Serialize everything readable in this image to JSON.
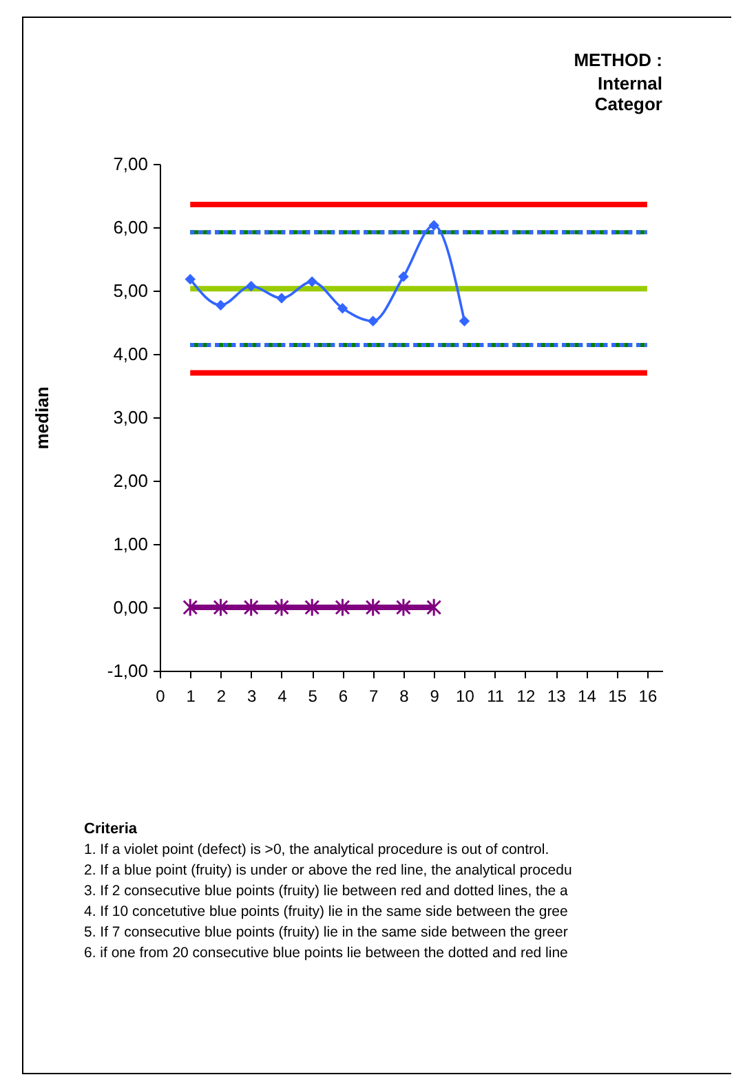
{
  "chart_data": {
    "type": "line",
    "title": "METHOD :",
    "subtitle": "Internal\nCategor",
    "ylabel": "median",
    "xlim": [
      0,
      16.5
    ],
    "xticks": [
      0,
      1,
      2,
      3,
      4,
      5,
      6,
      7,
      8,
      9,
      10,
      11,
      12,
      13,
      14,
      15,
      16
    ],
    "ylim": [
      -1,
      7
    ],
    "yticks": [
      {
        "value": -1,
        "label": "-1,00"
      },
      {
        "value": 0,
        "label": "0,00"
      },
      {
        "value": 1,
        "label": "1,00"
      },
      {
        "value": 2,
        "label": "2,00"
      },
      {
        "value": 3,
        "label": "3,00"
      },
      {
        "value": 4,
        "label": "4,00"
      },
      {
        "value": 5,
        "label": "5,00"
      },
      {
        "value": 6,
        "label": "6,00"
      },
      {
        "value": 7,
        "label": "7,00"
      }
    ],
    "grid": false,
    "series": [
      {
        "color": "#ff0000",
        "marker": "none",
        "line_style": "solid",
        "x": [
          1,
          2,
          3,
          4,
          5,
          6,
          7,
          8,
          9,
          10,
          11,
          12,
          13,
          14,
          15,
          16
        ],
        "values": [
          6.36,
          6.36,
          6.36,
          6.36,
          6.36,
          6.36,
          6.36,
          6.36,
          6.36,
          6.36,
          6.36,
          6.36,
          6.36,
          6.36,
          6.36,
          6.36
        ]
      },
      {
        "color": "#ff0000",
        "marker": "none",
        "line_style": "solid",
        "x": [
          1,
          2,
          3,
          4,
          5,
          6,
          7,
          8,
          9,
          10,
          11,
          12,
          13,
          14,
          15,
          16
        ],
        "values": [
          3.7,
          3.7,
          3.7,
          3.7,
          3.7,
          3.7,
          3.7,
          3.7,
          3.7,
          3.7,
          3.7,
          3.7,
          3.7,
          3.7,
          3.7,
          3.7
        ]
      },
      {
        "color": "#008000",
        "marker": "none",
        "line_style": "dashed",
        "x": [
          1,
          2,
          3,
          4,
          5,
          6,
          7,
          8,
          9,
          10,
          11,
          12,
          13,
          14,
          15,
          16
        ],
        "values": [
          5.92,
          5.92,
          5.92,
          5.92,
          5.92,
          5.92,
          5.92,
          5.92,
          5.92,
          5.92,
          5.92,
          5.92,
          5.92,
          5.92,
          5.92,
          5.92
        ]
      },
      {
        "color": "#008000",
        "marker": "none",
        "line_style": "dashed",
        "x": [
          1,
          2,
          3,
          4,
          5,
          6,
          7,
          8,
          9,
          10,
          11,
          12,
          13,
          14,
          15,
          16
        ],
        "values": [
          4.14,
          4.14,
          4.14,
          4.14,
          4.14,
          4.14,
          4.14,
          4.14,
          4.14,
          4.14,
          4.14,
          4.14,
          4.14,
          4.14,
          4.14,
          4.14
        ]
      },
      {
        "color": "#3366ff",
        "marker": "none",
        "line_style": "dotted",
        "x": [
          1,
          2,
          3,
          4,
          5,
          6,
          7,
          8,
          9,
          10,
          11,
          12,
          13,
          14,
          15,
          16
        ],
        "values": [
          5.92,
          5.92,
          5.92,
          5.92,
          5.92,
          5.92,
          5.92,
          5.92,
          5.92,
          5.92,
          5.92,
          5.92,
          5.92,
          5.92,
          5.92,
          5.92
        ]
      },
      {
        "color": "#3366ff",
        "marker": "none",
        "line_style": "dotted",
        "x": [
          1,
          2,
          3,
          4,
          5,
          6,
          7,
          8,
          9,
          10,
          11,
          12,
          13,
          14,
          15,
          16
        ],
        "values": [
          4.14,
          4.14,
          4.14,
          4.14,
          4.14,
          4.14,
          4.14,
          4.14,
          4.14,
          4.14,
          4.14,
          4.14,
          4.14,
          4.14,
          4.14,
          4.14
        ]
      },
      {
        "color": "#99cc00",
        "marker": "none",
        "line_style": "solid",
        "x": [
          1,
          2,
          3,
          4,
          5,
          6,
          7,
          8,
          9,
          10,
          11,
          12,
          13,
          14,
          15,
          16
        ],
        "values": [
          5.03,
          5.03,
          5.03,
          5.03,
          5.03,
          5.03,
          5.03,
          5.03,
          5.03,
          5.03,
          5.03,
          5.03,
          5.03,
          5.03,
          5.03,
          5.03
        ]
      },
      {
        "color": "#3366ff",
        "marker": "diamond",
        "line_style": "solid",
        "x": [
          1,
          2,
          3,
          4,
          5,
          6,
          7,
          8,
          9,
          10
        ],
        "values": [
          5.18,
          4.77,
          5.07,
          4.88,
          5.14,
          4.72,
          4.52,
          5.22,
          6.03,
          4.52
        ]
      },
      {
        "color": "#800080",
        "marker": "cross",
        "line_style": "solid",
        "x": [
          1,
          2,
          3,
          4,
          5,
          6,
          7,
          8,
          9
        ],
        "values": [
          0,
          0,
          0,
          0,
          0,
          0,
          0,
          0,
          0
        ]
      }
    ],
    "annotations": [
      "Criteria",
      "1. If a violet point (defect) is  >0, the analytical procedure is out of control.",
      "2. If a blue point (fruity) is under or above the red line, the analytical procedu",
      "3. If 2 consecutive blue points (fruity) lie between red and dotted lines, the a",
      "4. If 10 concetutive blue points (fruity) lie in the same side between the gree",
      "5. If 7 consecutive blue points (fruity) lie in the same side between the greer",
      "6. if one from 20 consecutive blue points lie between the dotted and red line"
    ]
  }
}
